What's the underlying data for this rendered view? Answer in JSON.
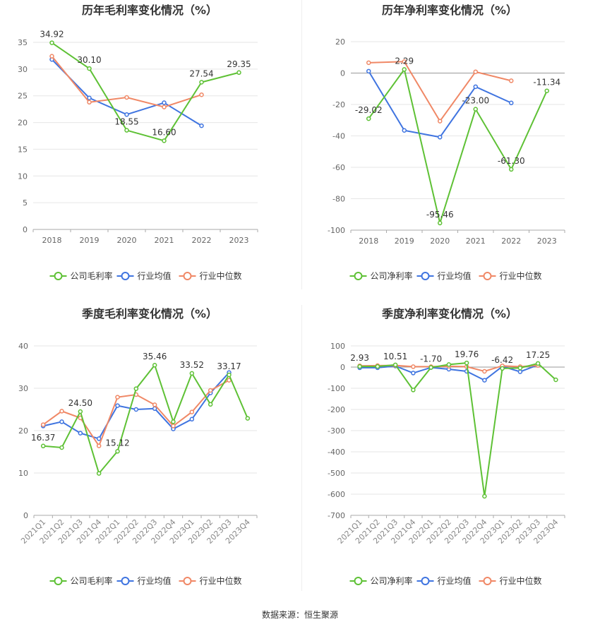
{
  "source_label": "数据来源：恒生聚源",
  "colors": {
    "company": "#5ec135",
    "avg": "#3f74e0",
    "median": "#f08866"
  },
  "chart_data": [
    {
      "type": "line",
      "title": "历年毛利率变化情况（%）",
      "categories": [
        "2018",
        "2019",
        "2020",
        "2021",
        "2022",
        "2023"
      ],
      "ylim": [
        0,
        35
      ],
      "yticks": [
        0,
        5,
        10,
        15,
        20,
        25,
        30,
        35
      ],
      "series": [
        {
          "name": "公司毛利率",
          "values": [
            34.92,
            30.1,
            18.55,
            16.6,
            27.54,
            29.35
          ]
        },
        {
          "name": "行业均值",
          "values": [
            31.8,
            24.6,
            21.5,
            23.7,
            19.4,
            null
          ]
        },
        {
          "name": "行业中位数",
          "values": [
            32.4,
            23.8,
            24.7,
            22.9,
            25.2,
            null
          ]
        }
      ],
      "labels": [
        {
          "i": 0,
          "text": "34.92",
          "pos": "above"
        },
        {
          "i": 1,
          "text": "30.10",
          "pos": "above"
        },
        {
          "i": 2,
          "text": "18.55",
          "pos": "above"
        },
        {
          "i": 3,
          "text": "16.60",
          "pos": "above"
        },
        {
          "i": 4,
          "text": "27.54",
          "pos": "above"
        },
        {
          "i": 5,
          "text": "29.35",
          "pos": "above"
        }
      ],
      "grid": true,
      "legend": "bottom-center"
    },
    {
      "type": "line",
      "title": "历年净利率变化情况（%）",
      "categories": [
        "2018",
        "2019",
        "2020",
        "2021",
        "2022",
        "2023"
      ],
      "ylim": [
        -100,
        20
      ],
      "yticks": [
        -100,
        -80,
        -60,
        -40,
        -20,
        0,
        20
      ],
      "series": [
        {
          "name": "公司净利率",
          "values": [
            -29.02,
            2.29,
            -95.46,
            -23.0,
            -61.3,
            -11.34
          ]
        },
        {
          "name": "行业均值",
          "values": [
            1.2,
            -36.5,
            -40.8,
            -8.7,
            -19.0,
            null
          ]
        },
        {
          "name": "行业中位数",
          "values": [
            6.6,
            7.3,
            -30.6,
            0.8,
            -4.9,
            null
          ]
        }
      ],
      "labels": [
        {
          "i": 0,
          "text": "-29.02",
          "pos": "above"
        },
        {
          "i": 1,
          "text": "2.29",
          "pos": "above"
        },
        {
          "i": 2,
          "text": "-95.46",
          "pos": "above"
        },
        {
          "i": 3,
          "text": "-23.00",
          "pos": "above"
        },
        {
          "i": 4,
          "text": "-61.30",
          "pos": "above"
        },
        {
          "i": 5,
          "text": "-11.34",
          "pos": "above"
        }
      ],
      "grid": true,
      "legend": "bottom-center"
    },
    {
      "type": "line",
      "title": "季度毛利率变化情况（%）",
      "categories": [
        "2021Q1",
        "2021Q2",
        "2021Q3",
        "2021Q4",
        "2022Q1",
        "2022Q2",
        "2022Q3",
        "2022Q4",
        "2023Q1",
        "2023Q2",
        "2023Q3",
        "2023Q4"
      ],
      "ylim": [
        0,
        40
      ],
      "yticks": [
        0,
        10,
        20,
        30,
        40
      ],
      "series": [
        {
          "name": "公司毛利率",
          "values": [
            16.37,
            16.0,
            24.5,
            9.9,
            15.12,
            29.9,
            35.46,
            22.1,
            33.52,
            26.2,
            33.17,
            22.9
          ]
        },
        {
          "name": "行业均值",
          "values": [
            21.1,
            22.1,
            19.4,
            18.1,
            25.9,
            25.0,
            25.2,
            20.4,
            22.7,
            28.9,
            33.7,
            null
          ]
        },
        {
          "name": "行业中位数",
          "values": [
            21.4,
            24.6,
            23.0,
            16.4,
            27.9,
            28.5,
            26.1,
            21.1,
            24.4,
            29.5,
            31.9,
            null
          ]
        }
      ],
      "labels": [
        {
          "i": 0,
          "text": "16.37",
          "pos": "above"
        },
        {
          "i": 2,
          "text": "24.50",
          "pos": "above"
        },
        {
          "i": 4,
          "text": "15.12",
          "pos": "above"
        },
        {
          "i": 6,
          "text": "35.46",
          "pos": "above"
        },
        {
          "i": 8,
          "text": "33.52",
          "pos": "above"
        },
        {
          "i": 10,
          "text": "33.17",
          "pos": "above"
        }
      ],
      "grid": true,
      "legend": "bottom-center"
    },
    {
      "type": "line",
      "title": "季度净利率变化情况（%）",
      "categories": [
        "2021Q1",
        "2021Q2",
        "2021Q3",
        "2021Q4",
        "2022Q1",
        "2022Q2",
        "2022Q3",
        "2022Q4",
        "2023Q1",
        "2023Q2",
        "2023Q3",
        "2023Q4"
      ],
      "ylim": [
        -700,
        100
      ],
      "yticks": [
        -700,
        -600,
        -500,
        -400,
        -300,
        -200,
        -100,
        0,
        100
      ],
      "series": [
        {
          "name": "公司净利率",
          "values": [
            2.93,
            3.0,
            10.51,
            -108.0,
            -1.7,
            12.0,
            19.76,
            -610.0,
            -6.42,
            -4.0,
            17.25,
            -60.0
          ]
        },
        {
          "name": "行业均值",
          "values": [
            -3.0,
            -3.0,
            5.0,
            -28.0,
            -2.0,
            -10.0,
            -20.0,
            -62.0,
            3.0,
            -22.0,
            10.0,
            null
          ]
        },
        {
          "name": "行业中位数",
          "values": [
            6.0,
            7.0,
            8.0,
            2.0,
            2.0,
            4.0,
            2.0,
            -20.0,
            6.0,
            2.0,
            8.0,
            null
          ]
        }
      ],
      "labels": [
        {
          "i": 0,
          "text": "2.93",
          "pos": "above"
        },
        {
          "i": 2,
          "text": "10.51",
          "pos": "above"
        },
        {
          "i": 4,
          "text": "-1.70",
          "pos": "above"
        },
        {
          "i": 6,
          "text": "19.76",
          "pos": "above"
        },
        {
          "i": 8,
          "text": "-6.42",
          "pos": "above"
        },
        {
          "i": 10,
          "text": "17.25",
          "pos": "above"
        }
      ],
      "grid": true,
      "legend": "bottom-center"
    }
  ]
}
